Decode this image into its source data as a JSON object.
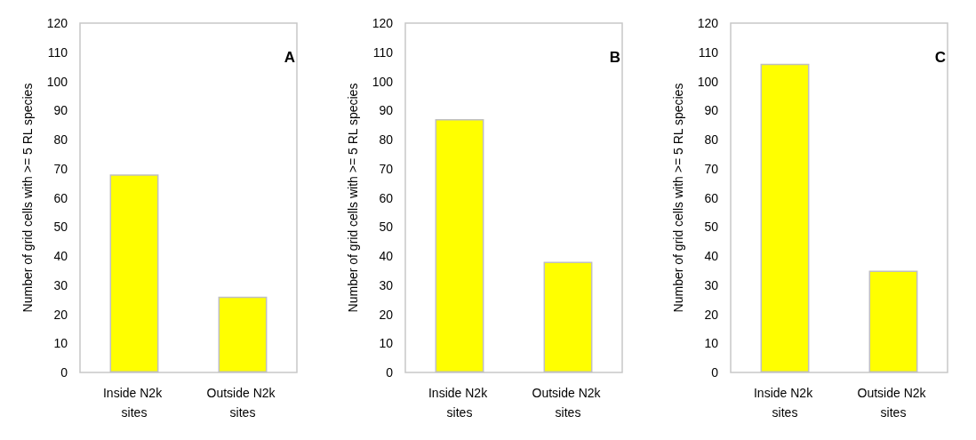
{
  "chart_data": [
    {
      "type": "bar",
      "title": "A",
      "ylabel": "Number of grid cells with >= 5 RL species",
      "categories": [
        "Inside N2k sites",
        "Outside N2k sites"
      ],
      "values": [
        68,
        26
      ],
      "color": "#ffff00",
      "ylim": [
        0,
        120
      ],
      "yticks": [
        0,
        10,
        20,
        30,
        40,
        50,
        60,
        70,
        80,
        90,
        100,
        110,
        120
      ],
      "grid": false
    },
    {
      "type": "bar",
      "title": "B",
      "ylabel": "Number of grid cells with >= 5 RL species",
      "categories": [
        "Inside N2k sites",
        "Outside N2k sites"
      ],
      "values": [
        87,
        38
      ],
      "color": "#ffff00",
      "ylim": [
        0,
        120
      ],
      "yticks": [
        0,
        10,
        20,
        30,
        40,
        50,
        60,
        70,
        80,
        90,
        100,
        110,
        120
      ],
      "grid": false
    },
    {
      "type": "bar",
      "title": "C",
      "ylabel": "Number of grid cells with >= 5 RL species",
      "categories": [
        "Inside N2k sites",
        "Outside N2k sites"
      ],
      "values": [
        106,
        35
      ],
      "color": "#ffff00",
      "ylim": [
        0,
        120
      ],
      "yticks": [
        0,
        10,
        20,
        30,
        40,
        50,
        60,
        70,
        80,
        90,
        100,
        110,
        120
      ],
      "grid": false
    }
  ]
}
